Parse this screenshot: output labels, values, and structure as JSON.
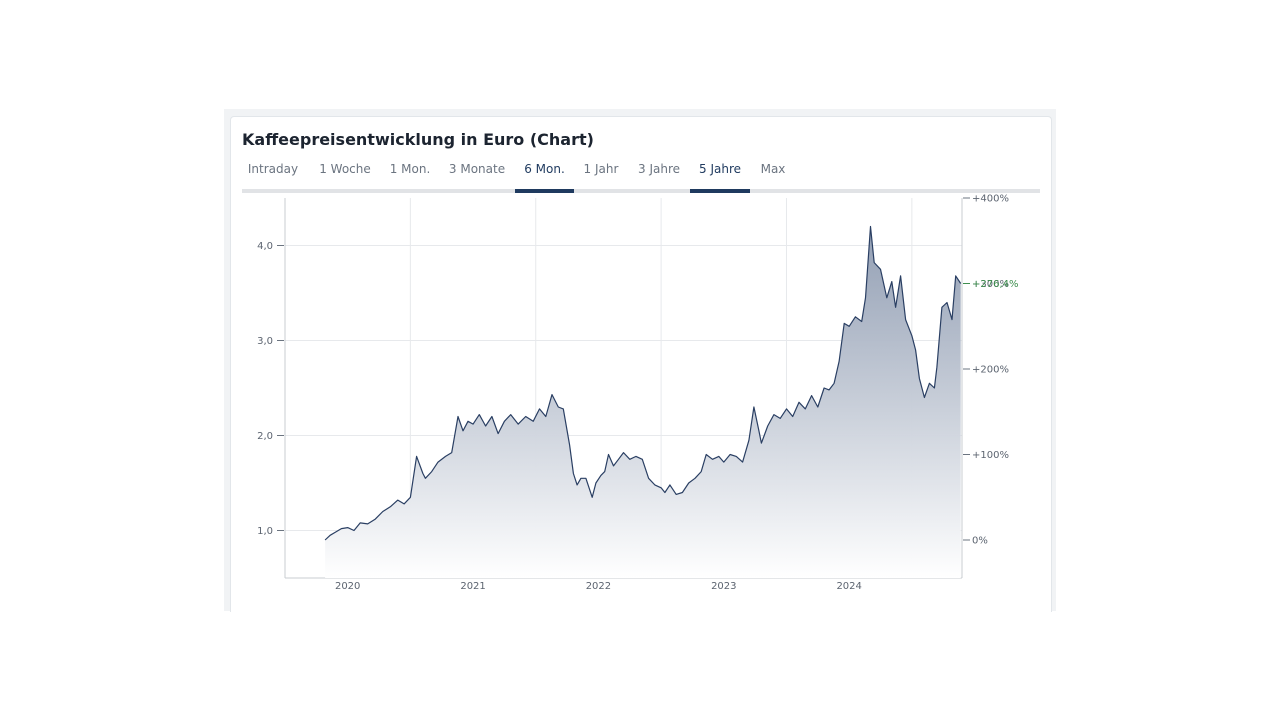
{
  "card": {
    "title": "Kaffeepreisentwicklung in Euro (Chart)"
  },
  "tabs": [
    {
      "label": "Intraday",
      "active": false
    },
    {
      "label": "1 Woche",
      "active": false
    },
    {
      "label": "1 Mon.",
      "active": false
    },
    {
      "label": "3 Monate",
      "active": false
    },
    {
      "label": "6 Mon.",
      "active": true
    },
    {
      "label": "1 Jahr",
      "active": false
    },
    {
      "label": "3 Jahre",
      "active": false
    },
    {
      "label": "5 Jahre",
      "active": true
    },
    {
      "label": "Max",
      "active": false
    }
  ],
  "colors": {
    "line": "#2a3f63",
    "fill_top": "#8d9ab0",
    "grid": "#e7e9ec",
    "axis": "#c9cdd2",
    "accent": "#1f3a5f",
    "positive": "#3f8f4f"
  },
  "chart_data": {
    "type": "area",
    "title": "",
    "xlabel": "",
    "ylabel": "",
    "x_ticks": [
      "2020",
      "2021",
      "2022",
      "2023",
      "2024"
    ],
    "y_ticks": [
      "1,0",
      "2,0",
      "3,0",
      "4,0"
    ],
    "y_right_ticks": [
      "0%",
      "+100%",
      "+200%",
      "+300%",
      "+400%"
    ],
    "current_change_label": "+276,4%",
    "xlim": [
      2020.0,
      2025.4
    ],
    "ylim": [
      0.5,
      4.5
    ],
    "grid": true,
    "series": [
      {
        "x": [
          2020.32,
          2020.36,
          2020.4,
          2020.45,
          2020.5,
          2020.55,
          2020.6,
          2020.66,
          2020.72,
          2020.78,
          2020.84,
          2020.9,
          2020.95,
          2021.0,
          2021.05,
          2021.1,
          2021.12,
          2021.17,
          2021.22,
          2021.28,
          2021.33,
          2021.38,
          2021.42,
          2021.46,
          2021.5,
          2021.55,
          2021.6,
          2021.65,
          2021.7,
          2021.75,
          2021.8,
          2021.86,
          2021.92,
          2021.98,
          2022.03,
          2022.08,
          2022.13,
          2022.18,
          2022.22,
          2022.27,
          2022.3,
          2022.33,
          2022.36,
          2022.4,
          2022.45,
          2022.48,
          2022.52,
          2022.55,
          2022.58,
          2022.62,
          2022.66,
          2022.7,
          2022.75,
          2022.8,
          2022.85,
          2022.9,
          2022.95,
          2023.0,
          2023.03,
          2023.07,
          2023.12,
          2023.17,
          2023.22,
          2023.27,
          2023.32,
          2023.36,
          2023.41,
          2023.46,
          2023.5,
          2023.55,
          2023.6,
          2023.65,
          2023.7,
          2023.74,
          2023.78,
          2023.8,
          2023.85,
          2023.9,
          2023.95,
          2024.0,
          2024.05,
          2024.1,
          2024.15,
          2024.2,
          2024.25,
          2024.3,
          2024.34,
          2024.38,
          2024.42,
          2024.46,
          2024.5,
          2024.55,
          2024.6,
          2024.63,
          2024.67,
          2024.7,
          2024.75,
          2024.8,
          2024.84,
          2024.87,
          2024.91,
          2024.95,
          2025.0,
          2025.03,
          2025.06,
          2025.1,
          2025.14,
          2025.18,
          2025.2,
          2025.24,
          2025.28,
          2025.32,
          2025.35,
          2025.39
        ],
        "values": [
          0.9,
          0.95,
          0.98,
          1.02,
          1.03,
          1.0,
          1.08,
          1.07,
          1.12,
          1.2,
          1.25,
          1.32,
          1.28,
          1.35,
          1.78,
          1.6,
          1.55,
          1.62,
          1.72,
          1.78,
          1.82,
          2.2,
          2.05,
          2.15,
          2.12,
          2.22,
          2.1,
          2.2,
          2.02,
          2.15,
          2.22,
          2.12,
          2.2,
          2.15,
          2.28,
          2.2,
          2.43,
          2.3,
          2.28,
          1.9,
          1.6,
          1.48,
          1.55,
          1.55,
          1.35,
          1.5,
          1.58,
          1.62,
          1.8,
          1.68,
          1.75,
          1.82,
          1.75,
          1.78,
          1.75,
          1.55,
          1.48,
          1.45,
          1.4,
          1.48,
          1.38,
          1.4,
          1.5,
          1.55,
          1.62,
          1.8,
          1.75,
          1.78,
          1.72,
          1.8,
          1.78,
          1.72,
          1.95,
          2.3,
          2.05,
          1.92,
          2.1,
          2.22,
          2.18,
          2.28,
          2.2,
          2.35,
          2.28,
          2.42,
          2.3,
          2.5,
          2.48,
          2.55,
          2.78,
          3.18,
          3.15,
          3.25,
          3.2,
          3.45,
          4.2,
          3.82,
          3.75,
          3.45,
          3.62,
          3.35,
          3.68,
          3.22,
          3.05,
          2.9,
          2.6,
          2.4,
          2.55,
          2.5,
          2.72,
          3.35,
          3.4,
          3.22,
          3.68,
          3.6
        ]
      }
    ]
  }
}
